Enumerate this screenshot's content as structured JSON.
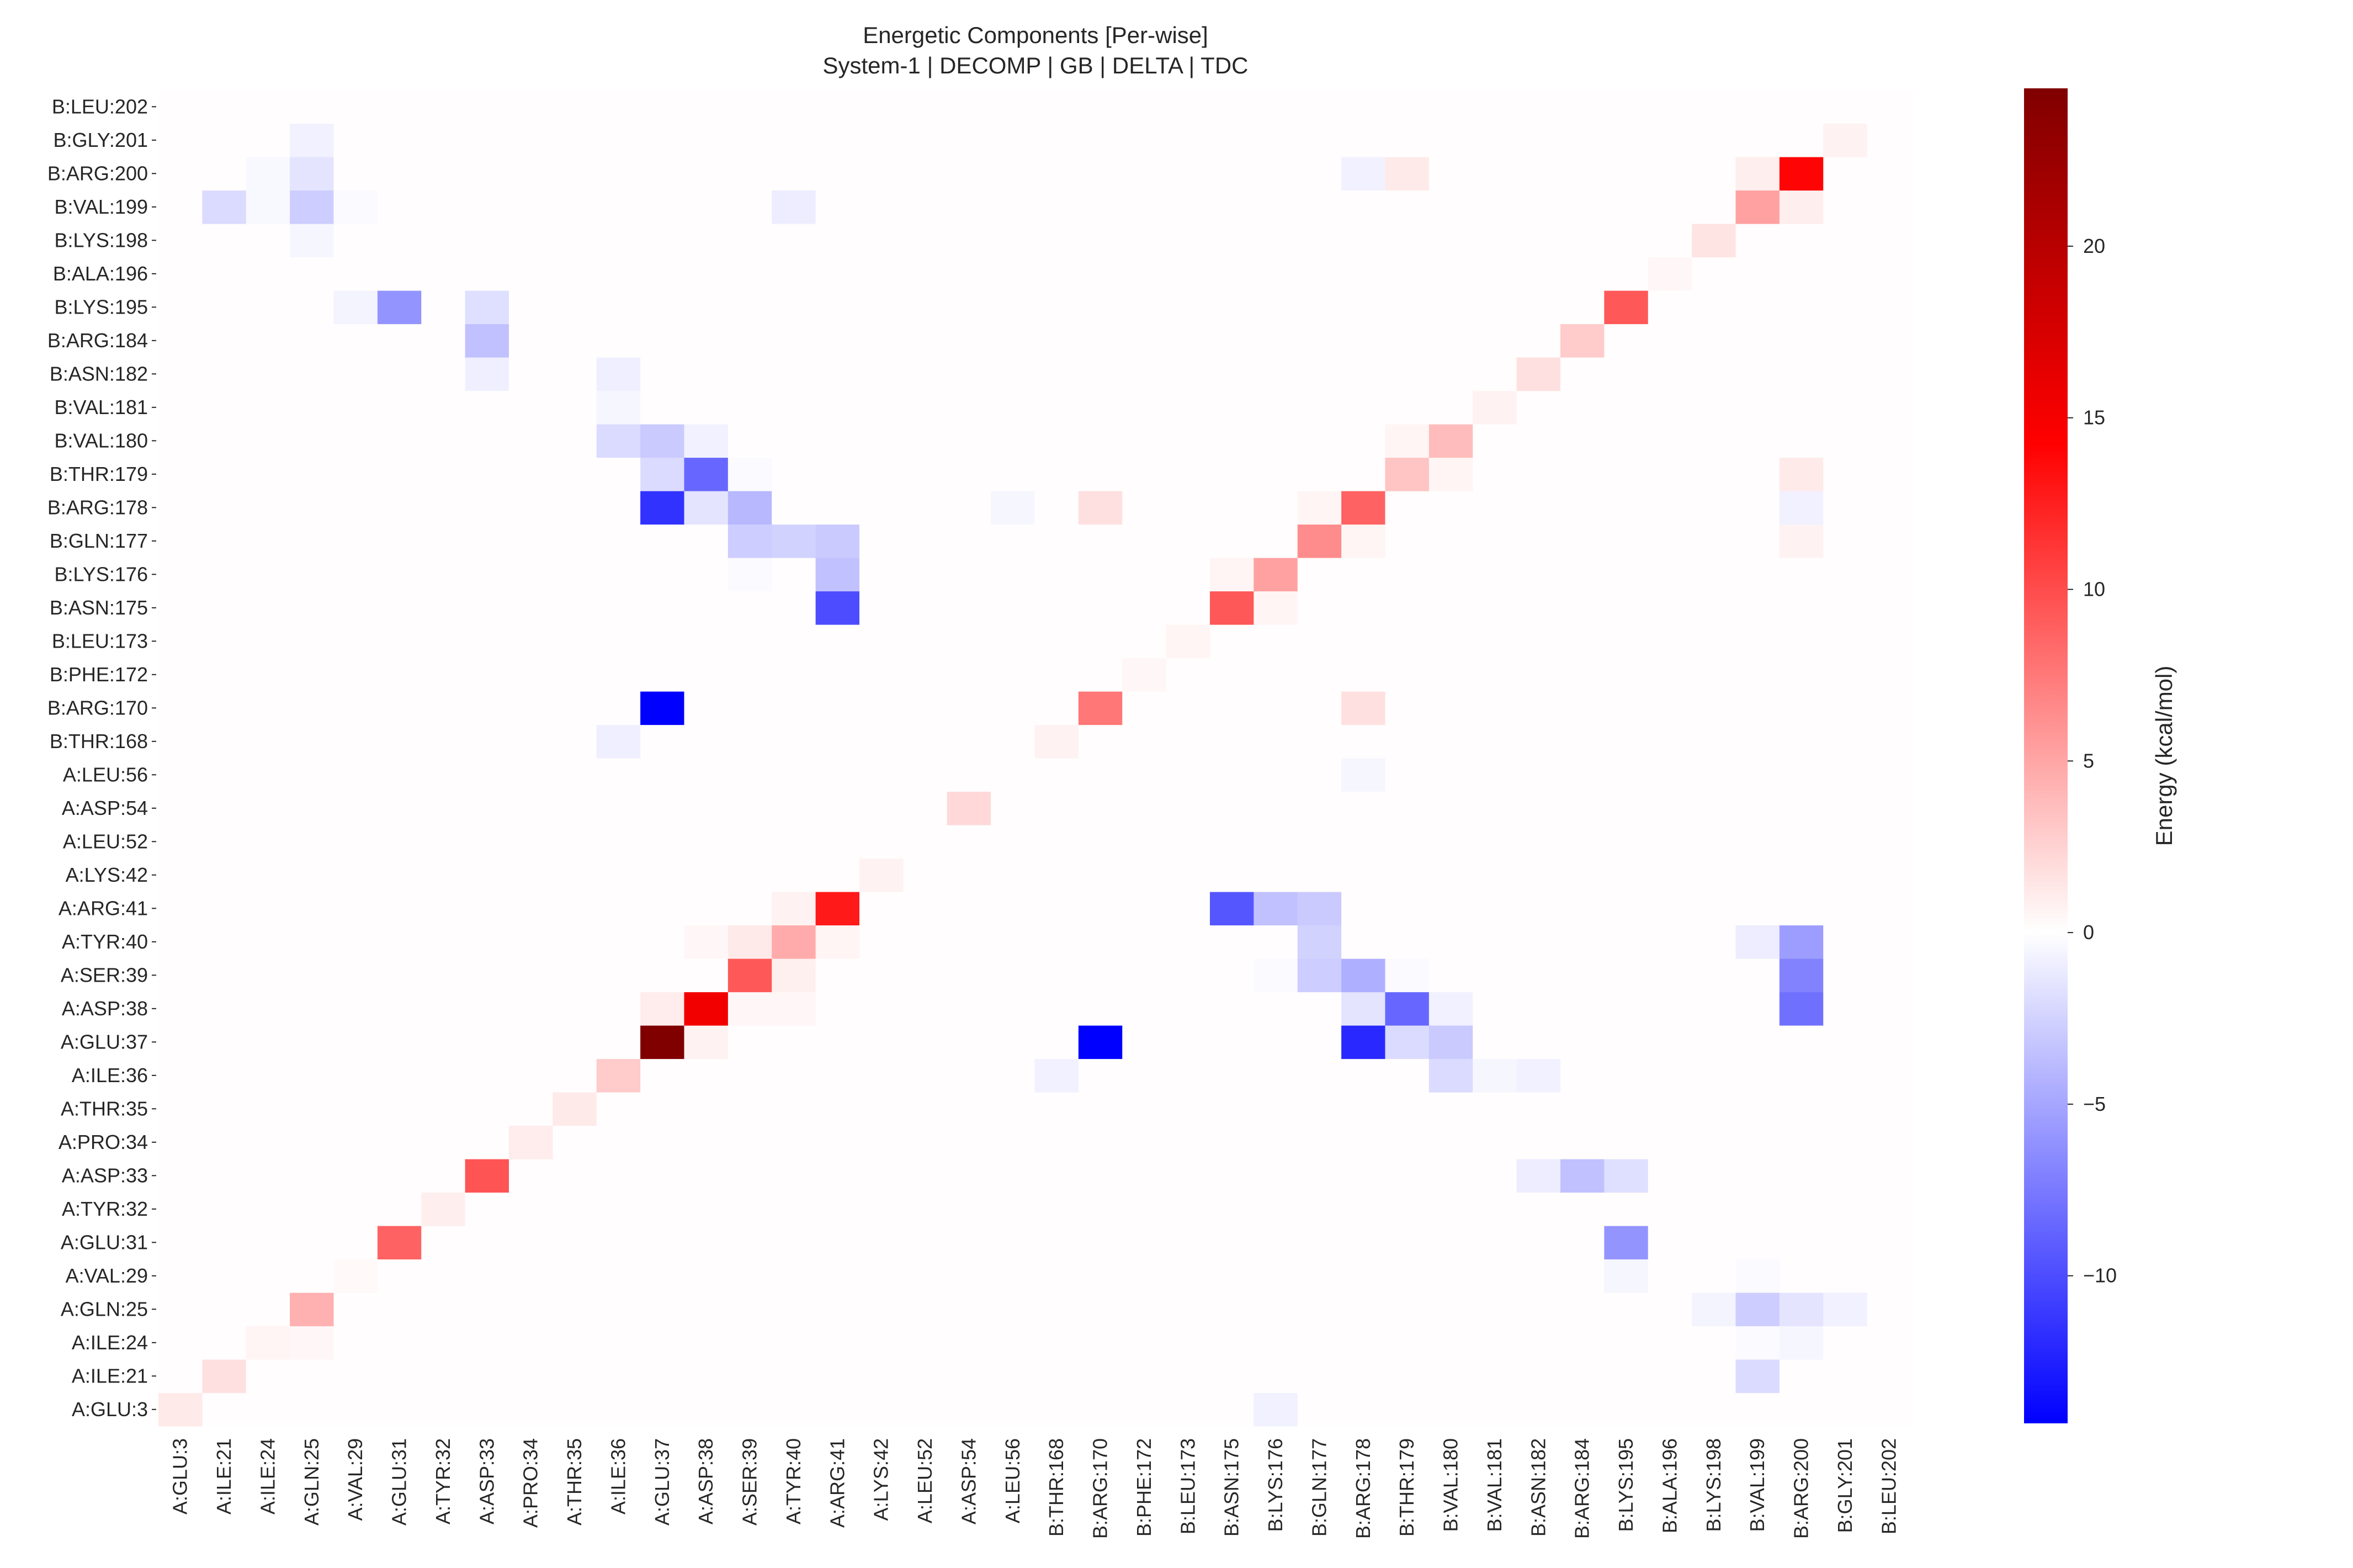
{
  "chart_data": {
    "type": "heatmap",
    "title": "Energetic Components [Per-wise]",
    "subtitle": "System-1 | DECOMP | GB | DELTA | TDC",
    "xlabel": "",
    "ylabel": "",
    "colorbar_label": "Energy (kcal/mol)",
    "colorbar_ticks": [
      "−10",
      "−5",
      "0",
      "5",
      "10",
      "15",
      "20"
    ],
    "colorbar_tick_values": [
      -10,
      -5,
      0,
      5,
      10,
      15,
      20
    ],
    "value_range": [
      -14.3,
      24.6
    ],
    "colormap": [
      "#0000ff",
      "#ffffff",
      "#ff0000",
      "#800000"
    ],
    "residues": [
      "A:GLU:3",
      "A:ILE:21",
      "A:ILE:24",
      "A:GLN:25",
      "A:VAL:29",
      "A:GLU:31",
      "A:TYR:32",
      "A:ASP:33",
      "A:PRO:34",
      "A:THR:35",
      "A:ILE:36",
      "A:GLU:37",
      "A:ASP:38",
      "A:SER:39",
      "A:TYR:40",
      "A:ARG:41",
      "A:LYS:42",
      "A:LEU:52",
      "A:ASP:54",
      "A:LEU:56",
      "B:THR:168",
      "B:ARG:170",
      "B:PHE:172",
      "B:LEU:173",
      "B:ASN:175",
      "B:LYS:176",
      "B:GLN:177",
      "B:ARG:178",
      "B:THR:179",
      "B:VAL:180",
      "B:VAL:181",
      "B:ASN:182",
      "B:ARG:184",
      "B:LYS:195",
      "B:ALA:196",
      "B:LYS:198",
      "B:VAL:199",
      "B:ARG:200",
      "B:GLY:201",
      "B:LEU:202"
    ],
    "x_categories": [
      "A:GLU:3",
      "A:ILE:21",
      "A:ILE:24",
      "A:GLN:25",
      "A:VAL:29",
      "A:GLU:31",
      "A:TYR:32",
      "A:ASP:33",
      "A:PRO:34",
      "A:THR:35",
      "A:ILE:36",
      "A:GLU:37",
      "A:ASP:38",
      "A:SER:39",
      "A:TYR:40",
      "A:ARG:41",
      "A:LYS:42",
      "A:LEU:52",
      "A:ASP:54",
      "A:LEU:56",
      "B:THR:168",
      "B:ARG:170",
      "B:PHE:172",
      "B:LEU:173",
      "B:ASN:175",
      "B:LYS:176",
      "B:GLN:177",
      "B:ARG:178",
      "B:THR:179",
      "B:VAL:180",
      "B:VAL:181",
      "B:ASN:182",
      "B:ARG:184",
      "B:LYS:195",
      "B:ALA:196",
      "B:LYS:198",
      "B:VAL:199",
      "B:ARG:200",
      "B:GLY:201",
      "B:LEU:202"
    ],
    "y_categories_bottom_to_top": [
      "A:GLU:3",
      "A:ILE:21",
      "A:ILE:24",
      "A:GLN:25",
      "A:VAL:29",
      "A:GLU:31",
      "A:TYR:32",
      "A:ASP:33",
      "A:PRO:34",
      "A:THR:35",
      "A:ILE:36",
      "A:GLU:37",
      "A:ASP:38",
      "A:SER:39",
      "A:TYR:40",
      "A:ARG:41",
      "A:LYS:42",
      "A:LEU:52",
      "A:ASP:54",
      "A:LEU:56",
      "B:THR:168",
      "B:ARG:170",
      "B:PHE:172",
      "B:LEU:173",
      "B:ASN:175",
      "B:LYS:176",
      "B:GLN:177",
      "B:ARG:178",
      "B:THR:179",
      "B:VAL:180",
      "B:VAL:181",
      "B:ASN:182",
      "B:ARG:184",
      "B:LYS:195",
      "B:ALA:196",
      "B:LYS:198",
      "B:VAL:199",
      "B:ARG:200",
      "B:GLY:201",
      "B:LEU:202"
    ],
    "default_value": 0.1,
    "cells": [
      {
        "x": "A:GLU:3",
        "y": "A:GLU:3",
        "value": 1.0
      },
      {
        "x": "A:ILE:21",
        "y": "A:ILE:21",
        "value": 1.5
      },
      {
        "x": "A:ILE:24",
        "y": "A:ILE:24",
        "value": 0.5
      },
      {
        "x": "A:GLN:25",
        "y": "A:ILE:24",
        "value": 0.4
      },
      {
        "x": "A:GLN:25",
        "y": "A:GLN:25",
        "value": 3.8
      },
      {
        "x": "A:VAL:29",
        "y": "A:VAL:29",
        "value": 0.3
      },
      {
        "x": "A:GLU:31",
        "y": "A:GLU:31",
        "value": 7.5
      },
      {
        "x": "A:TYR:32",
        "y": "A:TYR:32",
        "value": 0.8
      },
      {
        "x": "A:ASP:33",
        "y": "A:ASP:33",
        "value": 8.2
      },
      {
        "x": "A:PRO:34",
        "y": "A:PRO:34",
        "value": 0.9
      },
      {
        "x": "A:THR:35",
        "y": "A:THR:35",
        "value": 1.0
      },
      {
        "x": "A:ILE:36",
        "y": "A:ILE:36",
        "value": 2.5
      },
      {
        "x": "A:GLU:37",
        "y": "A:GLU:37",
        "value": 24.6
      },
      {
        "x": "A:GLU:37",
        "y": "A:ASP:38",
        "value": 0.9
      },
      {
        "x": "A:ASP:38",
        "y": "A:GLU:37",
        "value": 0.6
      },
      {
        "x": "A:ASP:38",
        "y": "A:ASP:38",
        "value": 13.5
      },
      {
        "x": "A:ASP:38",
        "y": "A:TYR:40",
        "value": 0.4
      },
      {
        "x": "A:SER:39",
        "y": "A:ASP:38",
        "value": 0.4
      },
      {
        "x": "A:SER:39",
        "y": "A:SER:39",
        "value": 8.0
      },
      {
        "x": "A:SER:39",
        "y": "A:TYR:40",
        "value": 1.0
      },
      {
        "x": "A:TYR:40",
        "y": "A:ASP:38",
        "value": 0.4
      },
      {
        "x": "A:TYR:40",
        "y": "A:SER:39",
        "value": 0.7
      },
      {
        "x": "A:TYR:40",
        "y": "A:TYR:40",
        "value": 4.0
      },
      {
        "x": "A:TYR:40",
        "y": "A:ARG:41",
        "value": 0.6
      },
      {
        "x": "A:ARG:41",
        "y": "A:TYR:40",
        "value": 0.5
      },
      {
        "x": "A:ARG:41",
        "y": "A:ARG:41",
        "value": 11.0
      },
      {
        "x": "A:LYS:42",
        "y": "A:LYS:42",
        "value": 0.6
      },
      {
        "x": "A:ASP:54",
        "y": "A:ASP:54",
        "value": 1.8
      },
      {
        "x": "B:THR:168",
        "y": "A:ILE:36",
        "value": -0.8
      },
      {
        "x": "B:THR:168",
        "y": "B:THR:168",
        "value": 0.6
      },
      {
        "x": "B:ARG:170",
        "y": "A:GLU:37",
        "value": -14.3
      },
      {
        "x": "B:ARG:170",
        "y": "B:ARG:170",
        "value": 6.5
      },
      {
        "x": "B:ARG:170",
        "y": "B:ARG:178",
        "value": 1.5
      },
      {
        "x": "B:PHE:172",
        "y": "B:PHE:172",
        "value": 0.4
      },
      {
        "x": "B:LEU:173",
        "y": "B:LEU:173",
        "value": 0.5
      },
      {
        "x": "B:ASN:175",
        "y": "A:ARG:41",
        "value": -9.5
      },
      {
        "x": "B:ASN:175",
        "y": "B:ASN:175",
        "value": 8.0
      },
      {
        "x": "B:ASN:175",
        "y": "B:LYS:176",
        "value": 0.5
      },
      {
        "x": "B:LYS:176",
        "y": "A:GLU:3",
        "value": -0.8
      },
      {
        "x": "B:LYS:176",
        "y": "A:ARG:41",
        "value": -3.5
      },
      {
        "x": "B:LYS:176",
        "y": "A:SER:39",
        "value": -0.3
      },
      {
        "x": "B:LYS:176",
        "y": "B:ASN:175",
        "value": 0.5
      },
      {
        "x": "B:LYS:176",
        "y": "B:LYS:176",
        "value": 4.5
      },
      {
        "x": "B:GLN:177",
        "y": "A:ARG:41",
        "value": -3.0
      },
      {
        "x": "B:GLN:177",
        "y": "A:TYR:40",
        "value": -2.5
      },
      {
        "x": "B:GLN:177",
        "y": "A:SER:39",
        "value": -2.8
      },
      {
        "x": "B:GLN:177",
        "y": "B:GLN:177",
        "value": 5.5
      },
      {
        "x": "B:GLN:177",
        "y": "B:ARG:178",
        "value": 0.5
      },
      {
        "x": "B:ARG:178",
        "y": "A:SER:39",
        "value": -4.5
      },
      {
        "x": "B:ARG:178",
        "y": "A:ASP:38",
        "value": -1.5
      },
      {
        "x": "B:ARG:178",
        "y": "A:GLU:37",
        "value": -12.0
      },
      {
        "x": "B:ARG:178",
        "y": "A:LEU:56",
        "value": -0.5
      },
      {
        "x": "B:ARG:178",
        "y": "B:ARG:170",
        "value": 1.5
      },
      {
        "x": "B:ARG:178",
        "y": "B:GLN:177",
        "value": 0.5
      },
      {
        "x": "B:ARG:178",
        "y": "B:ARG:178",
        "value": 7.5
      },
      {
        "x": "B:ARG:178",
        "y": "B:ARG:200",
        "value": -0.8
      },
      {
        "x": "B:THR:179",
        "y": "A:ASP:38",
        "value": -8.5
      },
      {
        "x": "B:THR:179",
        "y": "A:GLU:37",
        "value": -2.0
      },
      {
        "x": "B:THR:179",
        "y": "A:SER:39",
        "value": -0.3
      },
      {
        "x": "B:THR:179",
        "y": "B:THR:179",
        "value": 2.8
      },
      {
        "x": "B:THR:179",
        "y": "B:VAL:180",
        "value": 0.5
      },
      {
        "x": "B:THR:179",
        "y": "B:ARG:200",
        "value": 1.0
      },
      {
        "x": "B:VAL:180",
        "y": "A:GLU:37",
        "value": -3.0
      },
      {
        "x": "B:VAL:180",
        "y": "A:ILE:36",
        "value": -2.0
      },
      {
        "x": "B:VAL:180",
        "y": "A:ASP:38",
        "value": -0.8
      },
      {
        "x": "B:VAL:180",
        "y": "B:THR:179",
        "value": 0.5
      },
      {
        "x": "B:VAL:180",
        "y": "B:VAL:180",
        "value": 3.2
      },
      {
        "x": "B:VAL:181",
        "y": "A:ILE:36",
        "value": -0.5
      },
      {
        "x": "B:VAL:181",
        "y": "B:VAL:181",
        "value": 0.6
      },
      {
        "x": "B:ASN:182",
        "y": "A:ILE:36",
        "value": -0.8
      },
      {
        "x": "B:ASN:182",
        "y": "A:ASP:33",
        "value": -1.0
      },
      {
        "x": "B:ASN:182",
        "y": "B:ASN:182",
        "value": 1.5
      },
      {
        "x": "B:ARG:184",
        "y": "A:ASP:33",
        "value": -3.5
      },
      {
        "x": "B:ARG:184",
        "y": "B:ARG:184",
        "value": 2.5
      },
      {
        "x": "B:LYS:195",
        "y": "A:ASP:33",
        "value": -1.8
      },
      {
        "x": "B:LYS:195",
        "y": "A:GLU:31",
        "value": -6.0
      },
      {
        "x": "B:LYS:195",
        "y": "A:VAL:29",
        "value": -0.5
      },
      {
        "x": "B:LYS:195",
        "y": "B:LYS:195",
        "value": 8.0
      },
      {
        "x": "B:ALA:196",
        "y": "B:ALA:196",
        "value": 0.4
      },
      {
        "x": "B:LYS:198",
        "y": "A:GLN:25",
        "value": -0.6
      },
      {
        "x": "B:LYS:198",
        "y": "B:LYS:198",
        "value": 1.3
      },
      {
        "x": "B:VAL:199",
        "y": "A:TYR:40",
        "value": -1.0
      },
      {
        "x": "B:VAL:199",
        "y": "A:VAL:29",
        "value": -0.3
      },
      {
        "x": "B:VAL:199",
        "y": "A:GLN:25",
        "value": -2.8
      },
      {
        "x": "B:VAL:199",
        "y": "A:ILE:24",
        "value": -0.3
      },
      {
        "x": "B:VAL:199",
        "y": "A:ILE:21",
        "value": -2.0
      },
      {
        "x": "B:VAL:199",
        "y": "B:VAL:199",
        "value": 4.5
      },
      {
        "x": "B:VAL:199",
        "y": "B:ARG:200",
        "value": 0.8
      },
      {
        "x": "B:ARG:200",
        "y": "A:TYR:40",
        "value": -5.5
      },
      {
        "x": "B:ARG:200",
        "y": "A:SER:39",
        "value": -7.0
      },
      {
        "x": "B:ARG:200",
        "y": "A:ASP:38",
        "value": -8.0
      },
      {
        "x": "B:ARG:200",
        "y": "A:GLN:25",
        "value": -1.5
      },
      {
        "x": "B:ARG:200",
        "y": "A:ILE:24",
        "value": -0.5
      },
      {
        "x": "B:ARG:200",
        "y": "B:ARG:178",
        "value": -0.8
      },
      {
        "x": "B:ARG:200",
        "y": "B:GLN:177",
        "value": 0.6
      },
      {
        "x": "B:ARG:200",
        "y": "B:THR:179",
        "value": 1.0
      },
      {
        "x": "B:ARG:200",
        "y": "B:VAL:199",
        "value": 0.8
      },
      {
        "x": "B:ARG:200",
        "y": "B:ARG:200",
        "value": 12.0
      },
      {
        "x": "B:GLY:201",
        "y": "A:GLN:25",
        "value": -0.8
      },
      {
        "x": "B:GLY:201",
        "y": "B:GLY:201",
        "value": 0.6
      },
      {
        "x": "A:ILE:21",
        "y": "B:VAL:199",
        "value": -2.0
      },
      {
        "x": "A:ILE:24",
        "y": "B:VAL:199",
        "value": -0.4
      },
      {
        "x": "A:ILE:24",
        "y": "B:ARG:200",
        "value": -0.4
      },
      {
        "x": "A:GLN:25",
        "y": "B:VAL:199",
        "value": -2.8
      },
      {
        "x": "A:GLN:25",
        "y": "B:ARG:200",
        "value": -1.5
      },
      {
        "x": "A:GLN:25",
        "y": "B:LYS:198",
        "value": -0.5
      },
      {
        "x": "A:GLN:25",
        "y": "B:GLY:201",
        "value": -0.8
      },
      {
        "x": "A:VAL:29",
        "y": "B:VAL:199",
        "value": -0.3
      },
      {
        "x": "A:VAL:29",
        "y": "B:LYS:195",
        "value": -0.6
      },
      {
        "x": "A:GLU:31",
        "y": "B:LYS:195",
        "value": -6.0
      },
      {
        "x": "A:ASP:33",
        "y": "B:LYS:195",
        "value": -1.8
      },
      {
        "x": "A:ASP:33",
        "y": "B:ARG:184",
        "value": -3.5
      },
      {
        "x": "A:ASP:33",
        "y": "B:ASN:182",
        "value": -0.9
      },
      {
        "x": "A:ILE:36",
        "y": "B:ASN:182",
        "value": -0.9
      },
      {
        "x": "A:ILE:36",
        "y": "B:VAL:181",
        "value": -0.5
      },
      {
        "x": "A:ILE:36",
        "y": "B:VAL:180",
        "value": -2.0
      },
      {
        "x": "A:ILE:36",
        "y": "B:THR:168",
        "value": -0.9
      },
      {
        "x": "A:GLU:37",
        "y": "B:VAL:180",
        "value": -3.0
      },
      {
        "x": "A:GLU:37",
        "y": "B:THR:179",
        "value": -2.0
      },
      {
        "x": "A:GLU:37",
        "y": "B:ARG:178",
        "value": -11.5
      },
      {
        "x": "A:GLU:37",
        "y": "B:ARG:170",
        "value": -14.3
      },
      {
        "x": "A:ASP:38",
        "y": "B:VAL:180",
        "value": -0.8
      },
      {
        "x": "A:ASP:38",
        "y": "B:THR:179",
        "value": -8.5
      },
      {
        "x": "A:ASP:38",
        "y": "B:ARG:178",
        "value": -1.5
      },
      {
        "x": "A:SER:39",
        "y": "B:THR:179",
        "value": -0.3
      },
      {
        "x": "A:SER:39",
        "y": "B:ARG:178",
        "value": -4.0
      },
      {
        "x": "A:SER:39",
        "y": "B:GLN:177",
        "value": -2.8
      },
      {
        "x": "A:SER:39",
        "y": "B:LYS:176",
        "value": -0.3
      },
      {
        "x": "A:TYR:40",
        "y": "B:GLN:177",
        "value": -2.5
      },
      {
        "x": "A:TYR:40",
        "y": "B:VAL:199",
        "value": -1.0
      },
      {
        "x": "A:ARG:41",
        "y": "B:GLN:177",
        "value": -3.0
      },
      {
        "x": "A:ARG:41",
        "y": "B:LYS:176",
        "value": -3.5
      },
      {
        "x": "A:ARG:41",
        "y": "B:ASN:175",
        "value": -10.0
      },
      {
        "x": "A:LEU:56",
        "y": "B:ARG:178",
        "value": -0.5
      },
      {
        "x": "B:ARG:170",
        "y": "B:ARG:178",
        "value": 1.5
      }
    ]
  }
}
